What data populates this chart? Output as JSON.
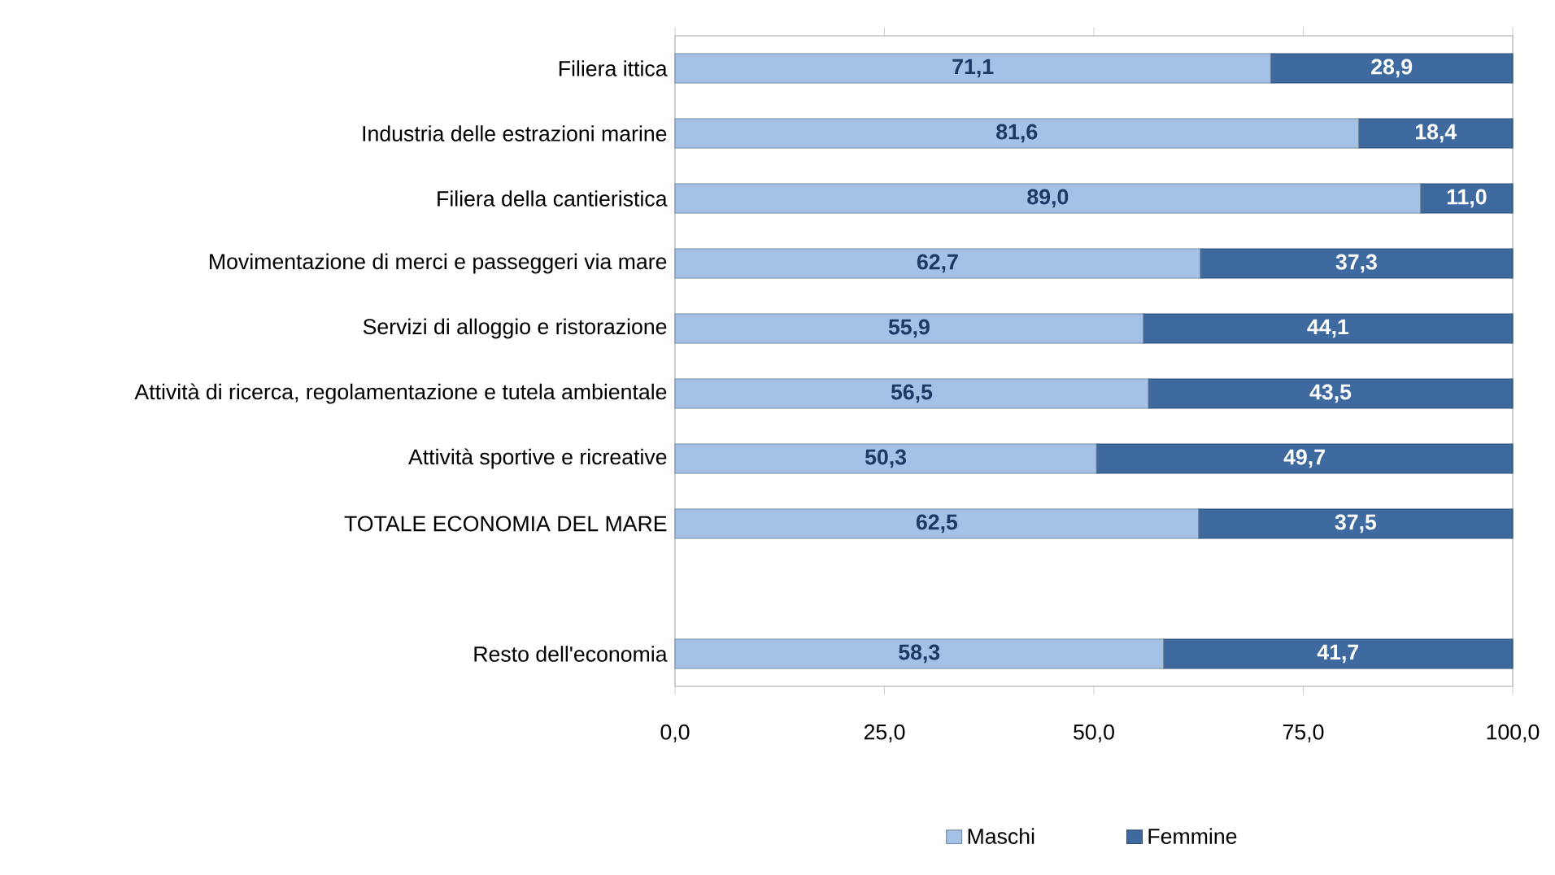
{
  "chart_data": {
    "type": "bar",
    "orientation": "horizontal",
    "stacked": true,
    "categories": [
      "Filiera ittica",
      "Industria delle estrazioni marine",
      "Filiera della cantieristica",
      "Movimentazione di merci e passeggeri via mare",
      "Servizi di alloggio e ristorazione",
      "Attività di ricerca, regolamentazione e tutela ambientale",
      "Attività sportive e ricreative",
      "TOTALE ECONOMIA DEL MARE",
      null,
      "Resto dell'economia"
    ],
    "series": [
      {
        "name": "Maschi",
        "color": "#a4c2e6",
        "values": [
          71.1,
          81.6,
          89.0,
          62.7,
          55.9,
          56.5,
          50.3,
          62.5,
          null,
          58.3
        ],
        "value_labels": [
          "71,1",
          "81,6",
          "89,0",
          "62,7",
          "55,9",
          "56,5",
          "50,3",
          "62,5",
          null,
          "58,3"
        ]
      },
      {
        "name": "Femmine",
        "color": "#3f6aa0",
        "values": [
          28.9,
          18.4,
          11.0,
          37.3,
          44.1,
          43.5,
          49.7,
          37.5,
          null,
          41.7
        ],
        "value_labels": [
          "28,9",
          "18,4",
          "11,0",
          "37,3",
          "44,1",
          "43,5",
          "49,7",
          "37,5",
          null,
          "41,7"
        ]
      }
    ],
    "xlim": [
      0,
      100
    ],
    "xticks": [
      {
        "value": 0,
        "label": "0,0"
      },
      {
        "value": 25,
        "label": "25,0"
      },
      {
        "value": 50,
        "label": "50,0"
      },
      {
        "value": 75,
        "label": "75,0"
      },
      {
        "value": 100,
        "label": "100,0"
      }
    ],
    "grid": false,
    "legend": "bottom"
  }
}
